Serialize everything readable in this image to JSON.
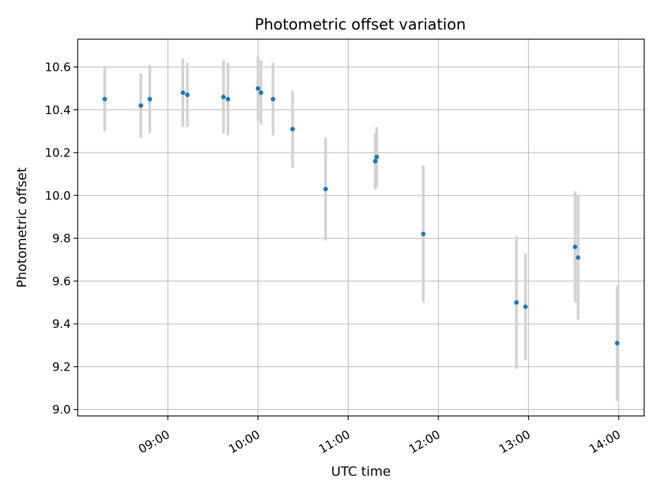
{
  "chart_data": {
    "type": "scatter",
    "title": "Photometric offset variation",
    "xlabel": "UTC time",
    "ylabel": "Photometric offset",
    "x_type": "time",
    "xlim": [
      "08:00",
      "14:17"
    ],
    "ylim": [
      8.97,
      10.73
    ],
    "x_ticks": [
      "09:00",
      "10:00",
      "11:00",
      "12:00",
      "13:00",
      "14:00"
    ],
    "y_ticks": [
      "9.0",
      "9.2",
      "9.4",
      "9.6",
      "9.8",
      "10.0",
      "10.2",
      "10.4",
      "10.6"
    ],
    "grid": true,
    "legend": "none",
    "series": [
      {
        "x": [
          "08:18",
          "08:42",
          "08:48",
          "09:10",
          "09:13",
          "09:37",
          "09:40",
          "10:00",
          "10:02",
          "10:10",
          "10:23",
          "10:45",
          "11:18",
          "11:19",
          "11:50",
          "12:52",
          "12:58",
          "13:31",
          "13:33",
          "13:59"
        ],
        "y": [
          10.45,
          10.42,
          10.45,
          10.48,
          10.47,
          10.46,
          10.45,
          10.5,
          10.48,
          10.45,
          10.31,
          10.03,
          10.16,
          10.18,
          9.82,
          9.5,
          9.48,
          9.76,
          9.71,
          9.31
        ],
        "yerr": [
          0.15,
          0.15,
          0.16,
          0.16,
          0.15,
          0.17,
          0.17,
          0.15,
          0.15,
          0.17,
          0.18,
          0.24,
          0.13,
          0.14,
          0.32,
          0.31,
          0.25,
          0.26,
          0.29,
          0.27
        ]
      }
    ],
    "colors": {
      "point": "#1f77b4",
      "errorbar": "#d3d3d3",
      "grid": "#b0b0b0",
      "axes": "#000000"
    }
  }
}
